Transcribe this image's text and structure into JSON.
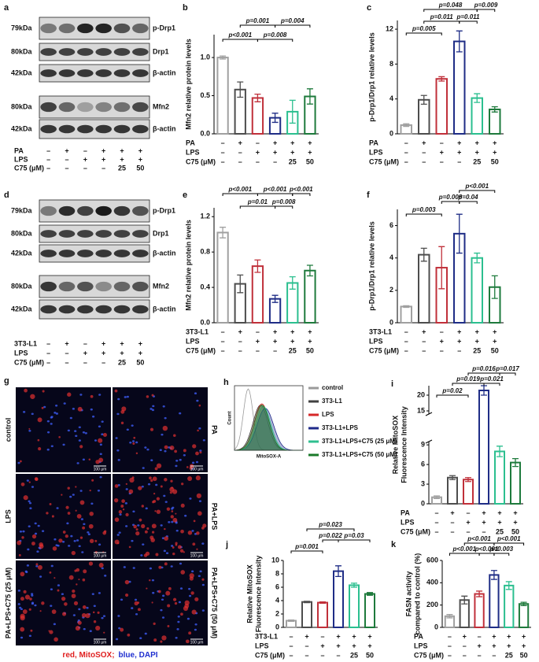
{
  "figure": {
    "blots": [
      {
        "panel": "a",
        "rows": [
          {
            "kda": "79kDa",
            "protein": "p-Drp1"
          },
          {
            "kda": "80kDa",
            "protein": "Drp1"
          },
          {
            "kda": "42kDa",
            "protein": "β-actin"
          },
          {
            "kda": "80kDa",
            "protein": "Mfn2"
          },
          {
            "kda": "42kDa",
            "protein": "β-actin"
          }
        ],
        "treatments": [
          {
            "label": "PA",
            "cells": [
              "–",
              "+",
              "–",
              "+",
              "+",
              "+"
            ]
          },
          {
            "label": "LPS",
            "cells": [
              "–",
              "–",
              "+",
              "+",
              "+",
              "+"
            ]
          },
          {
            "label": "C75 (μM)",
            "cells": [
              "–",
              "–",
              "–",
              "–",
              "25",
              "50"
            ]
          }
        ]
      },
      {
        "panel": "d",
        "rows": [
          {
            "kda": "79kDa",
            "protein": "p-Drp1"
          },
          {
            "kda": "80kDa",
            "protein": "Drp1"
          },
          {
            "kda": "42kDa",
            "protein": "β-actin"
          },
          {
            "kda": "80kDa",
            "protein": "Mfn2"
          },
          {
            "kda": "42kDa",
            "protein": "β-actin"
          }
        ],
        "treatments": [
          {
            "label": "3T3-L1",
            "cells": [
              "–",
              "+",
              "–",
              "+",
              "+",
              "+"
            ]
          },
          {
            "label": "LPS",
            "cells": [
              "–",
              "–",
              "+",
              "+",
              "+",
              "+"
            ]
          },
          {
            "label": "C75 (μM)",
            "cells": [
              "–",
              "–",
              "–",
              "–",
              "25",
              "50"
            ]
          }
        ]
      }
    ],
    "micrographs": {
      "panel": "g",
      "labels": [
        "control",
        "PA",
        "LPS",
        "PA+LPS",
        "PA+LPS+C75 (25 μM)",
        "PA+LPS+C75 (50 μM)"
      ],
      "scale_bar": "100 μm",
      "caption": [
        {
          "text": "red, MitoSOX;",
          "color": "#e02020"
        },
        {
          "text": "blue, DAPI",
          "color": "#2030d0"
        }
      ]
    },
    "flow": {
      "panel": "h",
      "xlabel": "MitoSOX-A",
      "ylabel": "Count",
      "legend": [
        {
          "name": "control",
          "color": "#9a9a9a"
        },
        {
          "name": "3T3-L1",
          "color": "#404040"
        },
        {
          "name": "LPS",
          "color": "#d62728"
        },
        {
          "name": "3T3-L1+LPS",
          "color": "#1f2a8a"
        },
        {
          "name": "3T3-L1+LPS+C75 (25 μM)",
          "color": "#2fbf8f"
        },
        {
          "name": "3T3-L1+LPS+C75 (50 μM)",
          "color": "#1a7a2a"
        }
      ]
    }
  },
  "chart_data": [
    {
      "type": "bar",
      "panel": "b",
      "ylabel": "Mfn2 relative protein levels",
      "values": [
        1.0,
        0.58,
        0.47,
        0.21,
        0.29,
        0.49
      ],
      "errors": [
        0.02,
        0.1,
        0.05,
        0.06,
        0.15,
        0.1
      ],
      "colors": [
        "#a0a0a0",
        "#4d4d4d",
        "#c0303a",
        "#1f2d86",
        "#2bbf8f",
        "#1e7a3c"
      ],
      "ylim": [
        0,
        1.3
      ],
      "yticks": [
        {
          "value": 0,
          "label": "0.0"
        },
        0.5,
        {
          "value": 1,
          "label": "1.0"
        }
      ],
      "annotations": [
        "p<0.001",
        "p=0.001",
        "p=0.008",
        "p=0.004"
      ],
      "treatments": [
        {
          "label": "PA",
          "cells": [
            "–",
            "+",
            "–",
            "+",
            "+",
            "+"
          ]
        },
        {
          "label": "LPS",
          "cells": [
            "–",
            "–",
            "+",
            "+",
            "+",
            "+"
          ]
        },
        {
          "label": "C75 (μM)",
          "cells": [
            "–",
            "–",
            "–",
            "–",
            "25",
            "50"
          ]
        }
      ]
    },
    {
      "type": "bar",
      "panel": "c",
      "ylabel": "p-Drp1/Drp1 relative  levels",
      "values": [
        1.0,
        3.9,
        6.3,
        10.6,
        4.1,
        2.8
      ],
      "errors": [
        0.15,
        0.5,
        0.25,
        1.2,
        0.5,
        0.3
      ],
      "colors": [
        "#a0a0a0",
        "#4d4d4d",
        "#c0303a",
        "#1f2d86",
        "#2bbf8f",
        "#1e7a3c"
      ],
      "ylim": [
        0,
        13
      ],
      "yticks": [
        0,
        4,
        8,
        12
      ],
      "annotations": [
        "p=0.048",
        "p=0.009",
        "p=0.005",
        "p=0.011",
        "p=0.011"
      ],
      "treatments": [
        {
          "label": "PA",
          "cells": [
            "–",
            "+",
            "–",
            "+",
            "+",
            "+"
          ]
        },
        {
          "label": "LPS",
          "cells": [
            "–",
            "–",
            "+",
            "+",
            "+",
            "+"
          ]
        },
        {
          "label": "C75 (μM)",
          "cells": [
            "–",
            "–",
            "–",
            "–",
            "25",
            "50"
          ]
        }
      ]
    },
    {
      "type": "bar",
      "panel": "e",
      "ylabel": "Mfn2 relative protein levels",
      "values": [
        1.02,
        0.44,
        0.64,
        0.27,
        0.45,
        0.59
      ],
      "errors": [
        0.06,
        0.1,
        0.07,
        0.04,
        0.07,
        0.06
      ],
      "colors": [
        "#a0a0a0",
        "#4d4d4d",
        "#c0303a",
        "#1f2d86",
        "#2bbf8f",
        "#1e7a3c"
      ],
      "ylim": [
        0,
        1.3
      ],
      "yticks": [
        {
          "value": 0,
          "label": "0.0"
        },
        0.4,
        0.8,
        1.2
      ],
      "annotations": [
        "p<0.001",
        "p<0.001",
        "p<0.001",
        "p=0.01",
        "p=0.008"
      ],
      "treatments": [
        {
          "label": "3T3-L1",
          "cells": [
            "–",
            "+",
            "–",
            "+",
            "+",
            "+"
          ]
        },
        {
          "label": "LPS",
          "cells": [
            "–",
            "–",
            "+",
            "+",
            "+",
            "+"
          ]
        },
        {
          "label": "C75 (μM)",
          "cells": [
            "–",
            "–",
            "–",
            "–",
            "25",
            "50"
          ]
        }
      ]
    },
    {
      "type": "bar",
      "panel": "f",
      "ylabel": "p-Drp1/Drp1 relative  levels",
      "values": [
        1.0,
        4.2,
        3.4,
        5.5,
        4.0,
        2.2
      ],
      "errors": [
        0.05,
        0.4,
        1.3,
        1.2,
        0.3,
        0.7
      ],
      "colors": [
        "#a0a0a0",
        "#4d4d4d",
        "#c0303a",
        "#1f2d86",
        "#2bbf8f",
        "#1e7a3c"
      ],
      "ylim": [
        0,
        7
      ],
      "yticks": [
        0,
        2,
        4,
        6
      ],
      "annotations": [
        "p<0.001",
        "p=0.008",
        "p=0.04",
        "p=0.003"
      ],
      "treatments": [
        {
          "label": "3T3-L1",
          "cells": [
            "–",
            "+",
            "–",
            "+",
            "+",
            "+"
          ]
        },
        {
          "label": "LPS",
          "cells": [
            "–",
            "–",
            "+",
            "+",
            "+",
            "+"
          ]
        },
        {
          "label": "C75 (μM)",
          "cells": [
            "–",
            "–",
            "–",
            "–",
            "25",
            "50"
          ]
        }
      ]
    },
    {
      "type": "bar",
      "panel": "i",
      "ylabel": [
        "Relative MitoSOX",
        "Fluorescence Intensity"
      ],
      "values": [
        1.0,
        4.0,
        3.7,
        21.5,
        8.0,
        6.3
      ],
      "errors": [
        0.2,
        0.3,
        0.3,
        1.5,
        0.8,
        0.6
      ],
      "colors": [
        "#a0a0a0",
        "#4d4d4d",
        "#c0303a",
        "#1f2d86",
        "#2bbf8f",
        "#1e7a3c"
      ],
      "ylim": [
        0,
        23
      ],
      "ybreak": [
        9.5,
        14
      ],
      "yticks": [
        0,
        3,
        6,
        9,
        15,
        20
      ],
      "annotations": [
        "p=0.016",
        "p=0.017",
        "p=0.019",
        "p=0.021",
        "p=0.02"
      ],
      "treatments": [
        {
          "label": "PA",
          "cells": [
            "–",
            "+",
            "–",
            "+",
            "+",
            "+"
          ]
        },
        {
          "label": "LPS",
          "cells": [
            "–",
            "–",
            "+",
            "+",
            "+",
            "+"
          ]
        },
        {
          "label": "C75 (μM)",
          "cells": [
            "–",
            "–",
            "–",
            "–",
            "25",
            "50"
          ]
        }
      ]
    },
    {
      "type": "bar",
      "panel": "j",
      "ylabel": [
        "Relative MitoSOX",
        "Fluorescence Intensity"
      ],
      "values": [
        1.0,
        3.8,
        3.7,
        8.4,
        6.3,
        5.0
      ],
      "errors": [
        0.1,
        0.1,
        0.1,
        0.8,
        0.3,
        0.2
      ],
      "colors": [
        "#a0a0a0",
        "#4d4d4d",
        "#c0303a",
        "#1f2d86",
        "#2bbf8f",
        "#1e7a3c"
      ],
      "ylim": [
        0,
        10
      ],
      "yticks": [
        0,
        2,
        4,
        6,
        8,
        10
      ],
      "annotations": [
        "p=0.023",
        "p=0.022",
        "p=0.03",
        "p=0.001"
      ],
      "treatments": [
        {
          "label": "3T3-L1",
          "cells": [
            "–",
            "+",
            "–",
            "+",
            "+",
            "+"
          ]
        },
        {
          "label": "LPS",
          "cells": [
            "–",
            "–",
            "+",
            "+",
            "+",
            "+"
          ]
        },
        {
          "label": "C75 (μM)",
          "cells": [
            "–",
            "–",
            "–",
            "–",
            "25",
            "50"
          ]
        }
      ]
    },
    {
      "type": "bar",
      "panel": "k",
      "ylabel": [
        "FASN activity",
        "compared to control (%)"
      ],
      "values": [
        100,
        245,
        300,
        470,
        375,
        210
      ],
      "errors": [
        15,
        35,
        25,
        40,
        35,
        15
      ],
      "colors": [
        "#a0a0a0",
        "#4d4d4d",
        "#c0303a",
        "#1f2d86",
        "#2bbf8f",
        "#1e7a3c"
      ],
      "ylim": [
        0,
        600
      ],
      "yticks": [
        0,
        200,
        400,
        600
      ],
      "annotations": [
        "p<0.001",
        "p<0.001",
        "p<0.001",
        "p<0.001",
        "p=0.003"
      ],
      "treatments": [
        {
          "label": "PA",
          "cells": [
            "–",
            "+",
            "–",
            "+",
            "+",
            "+"
          ]
        },
        {
          "label": "LPS",
          "cells": [
            "–",
            "–",
            "+",
            "+",
            "+",
            "+"
          ]
        },
        {
          "label": "C75 (μM)",
          "cells": [
            "–",
            "–",
            "–",
            "–",
            "25",
            "50"
          ]
        }
      ]
    }
  ]
}
